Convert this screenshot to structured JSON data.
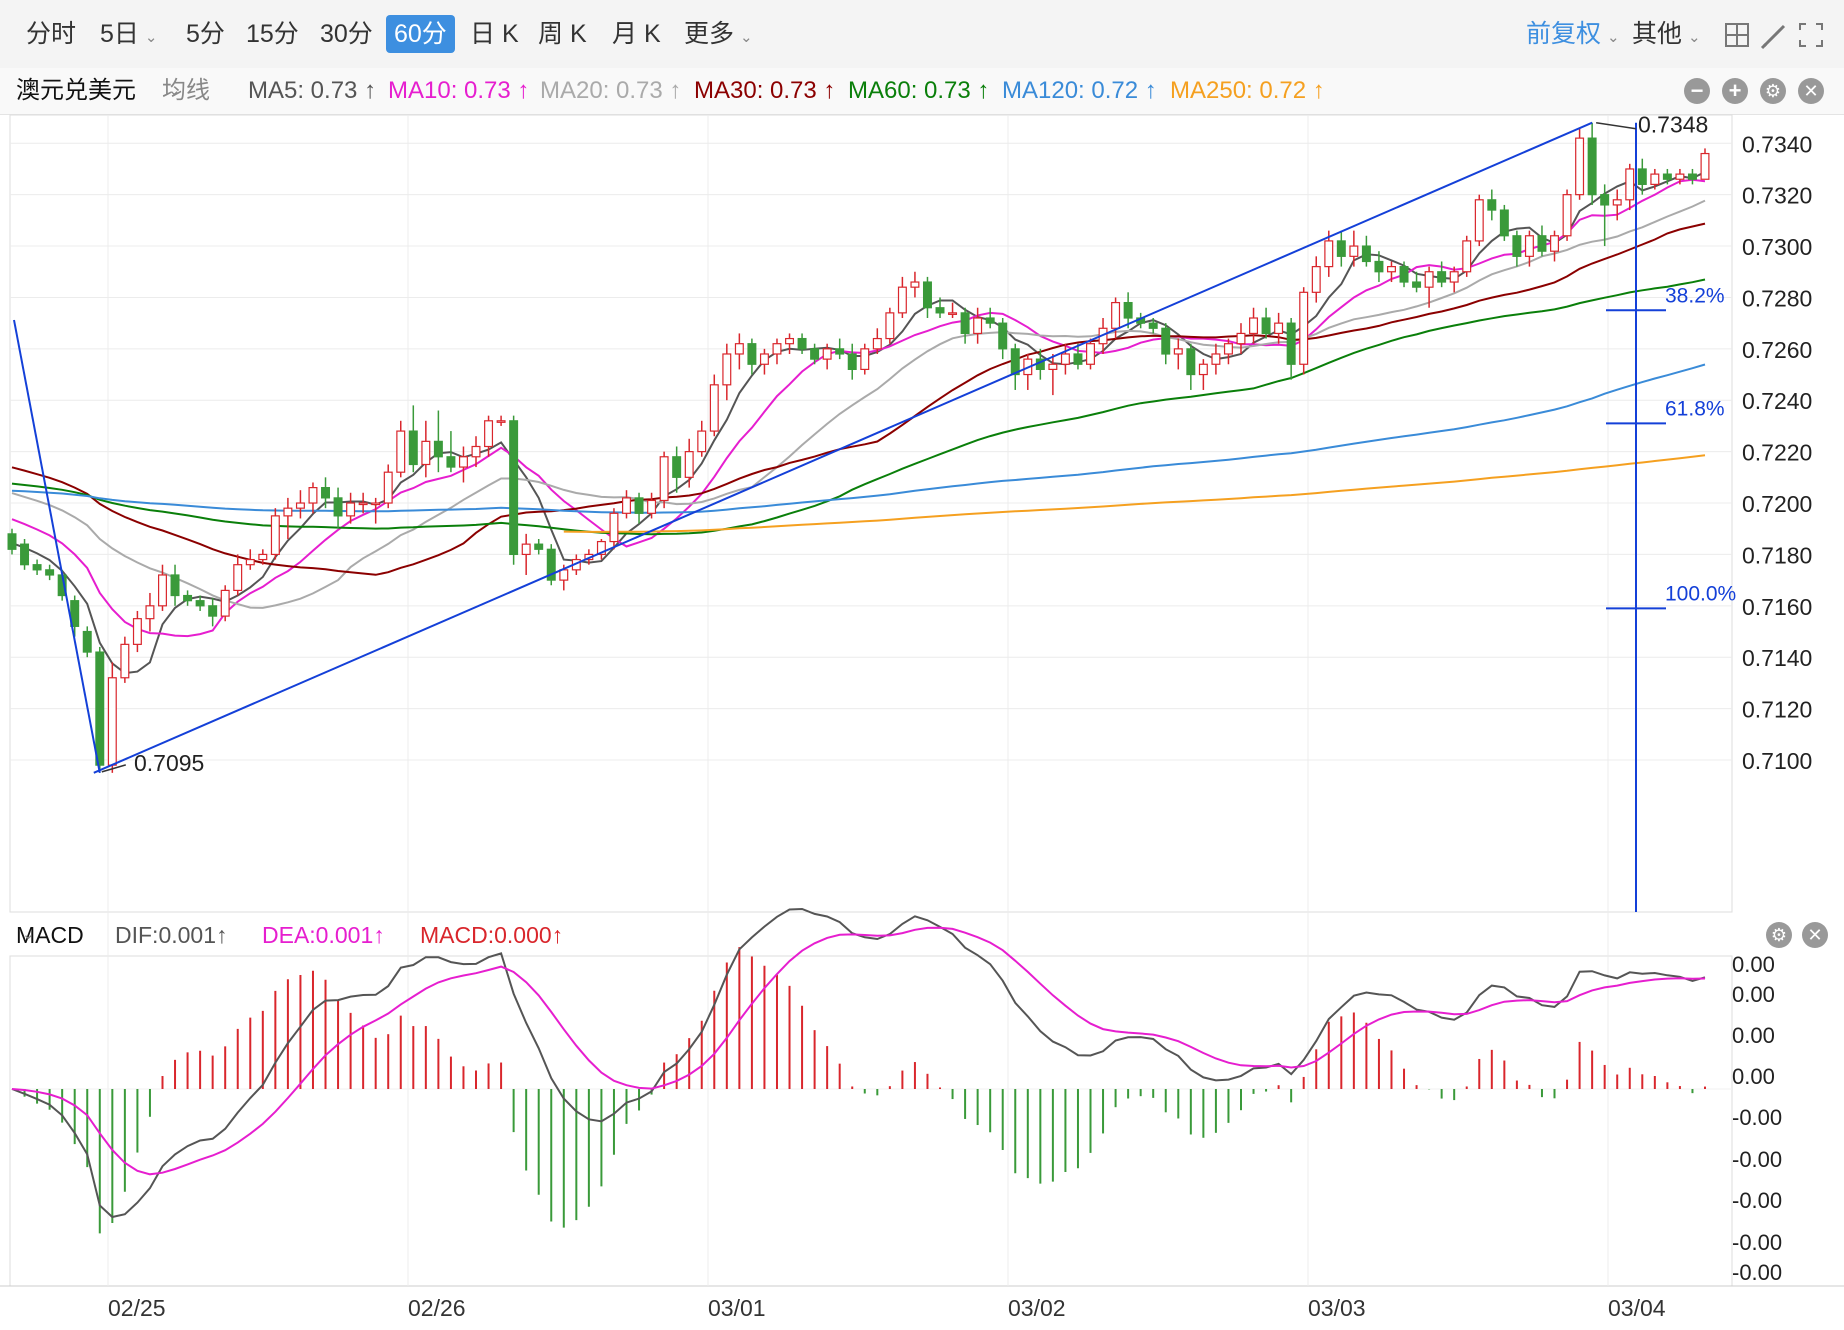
{
  "toolbar": {
    "tabs": [
      {
        "label": "分时",
        "dropdown": false
      },
      {
        "label": "5日",
        "dropdown": true
      },
      {
        "label": "5分",
        "dropdown": false
      },
      {
        "label": "15分",
        "dropdown": false
      },
      {
        "label": "30分",
        "dropdown": false
      },
      {
        "label": "60分",
        "dropdown": false,
        "active": true
      },
      {
        "label": "日 K",
        "dropdown": false
      },
      {
        "label": "周 K",
        "dropdown": false
      },
      {
        "label": "月 K",
        "dropdown": false
      },
      {
        "label": "更多",
        "dropdown": true
      }
    ],
    "adjust_label": "前复权",
    "other_label": "其他",
    "right_icons": [
      "grid-icon",
      "draw-icon",
      "fullscreen-icon"
    ]
  },
  "ma_bar": {
    "symbol": "澳元兑美元",
    "ma_type": "均线",
    "items": [
      {
        "label": "MA5: 0.73 ↑",
        "color": "#555555"
      },
      {
        "label": "MA10: 0.73 ↑",
        "color": "#e61ecf"
      },
      {
        "label": "MA20: 0.73 ↑",
        "color": "#aaaaaa"
      },
      {
        "label": "MA30: 0.73 ↑",
        "color": "#8b0000"
      },
      {
        "label": "MA60: 0.73 ↑",
        "color": "#0a7f0a"
      },
      {
        "label": "MA120: 0.72 ↑",
        "color": "#3a8bd8"
      },
      {
        "label": "MA250: 0.72 ↑",
        "color": "#f5a020"
      }
    ]
  },
  "macd_bar": {
    "title": "MACD",
    "dif": "DIF:0.001↑",
    "dea": "DEA:0.001↑",
    "macd": "MACD:0.000↑"
  },
  "colors": {
    "up": "#d9262c",
    "down": "#3a9a3a",
    "trend": "#1440d8"
  },
  "chart_data": {
    "type": "candlestick",
    "price_axis": {
      "ticks": [
        0.71,
        0.712,
        0.714,
        0.716,
        0.718,
        0.72,
        0.722,
        0.724,
        0.726,
        0.728,
        0.73,
        0.732,
        0.734
      ],
      "tick_labels": [
        "0.7100",
        "0.7120",
        "0.7140",
        "0.7160",
        "0.7180",
        "0.7200",
        "0.7220",
        "0.7240",
        "0.7260",
        "0.7280",
        "0.7300",
        "0.7320",
        "0.7340"
      ]
    },
    "x_labels": [
      "02/25",
      "02/26",
      "03/01",
      "03/02",
      "03/03",
      "03/04"
    ],
    "annotations": {
      "high": {
        "label": "0.7348",
        "value": 0.7348
      },
      "low": {
        "label": "0.7095",
        "value": 0.7095
      }
    },
    "fibonacci": [
      {
        "label": "38.2%",
        "value": 0.7275
      },
      {
        "label": "61.8%",
        "value": 0.7231
      },
      {
        "label": "100.0%",
        "value": 0.7159
      }
    ],
    "macd_axis_labels": [
      "0.00",
      "0.00",
      "0.00",
      "0.00",
      "-0.00",
      "-0.00",
      "-0.00",
      "-0.00",
      "-0.00"
    ],
    "ohlc": [
      [
        0.7188,
        0.719,
        0.718,
        0.7182
      ],
      [
        0.7184,
        0.7186,
        0.7174,
        0.7176
      ],
      [
        0.7176,
        0.7178,
        0.7172,
        0.7174
      ],
      [
        0.7174,
        0.7176,
        0.717,
        0.7172
      ],
      [
        0.7172,
        0.7174,
        0.7162,
        0.7164
      ],
      [
        0.7162,
        0.7164,
        0.7148,
        0.7152
      ],
      [
        0.715,
        0.7152,
        0.714,
        0.7142
      ],
      [
        0.7142,
        0.7144,
        0.7095,
        0.7098
      ],
      [
        0.7098,
        0.7138,
        0.7095,
        0.7132
      ],
      [
        0.7132,
        0.7148,
        0.713,
        0.7145
      ],
      [
        0.7145,
        0.7158,
        0.7142,
        0.7155
      ],
      [
        0.7155,
        0.7165,
        0.715,
        0.716
      ],
      [
        0.716,
        0.7176,
        0.7158,
        0.7172
      ],
      [
        0.7172,
        0.7176,
        0.716,
        0.7164
      ],
      [
        0.7164,
        0.7166,
        0.716,
        0.7162
      ],
      [
        0.7162,
        0.7164,
        0.7158,
        0.716
      ],
      [
        0.716,
        0.7163,
        0.7152,
        0.7156
      ],
      [
        0.7156,
        0.7168,
        0.7154,
        0.7166
      ],
      [
        0.7166,
        0.718,
        0.7164,
        0.7176
      ],
      [
        0.7176,
        0.7182,
        0.7174,
        0.7178
      ],
      [
        0.7178,
        0.7182,
        0.7176,
        0.718
      ],
      [
        0.718,
        0.7198,
        0.7178,
        0.7195
      ],
      [
        0.7195,
        0.7202,
        0.7186,
        0.7198
      ],
      [
        0.7198,
        0.7205,
        0.7194,
        0.72
      ],
      [
        0.72,
        0.7208,
        0.7196,
        0.7206
      ],
      [
        0.7206,
        0.721,
        0.7198,
        0.7202
      ],
      [
        0.7202,
        0.7206,
        0.719,
        0.7195
      ],
      [
        0.7195,
        0.7204,
        0.7192,
        0.72
      ],
      [
        0.72,
        0.7204,
        0.7196,
        0.72
      ],
      [
        0.72,
        0.7202,
        0.7192,
        0.72
      ],
      [
        0.72,
        0.7215,
        0.7198,
        0.7212
      ],
      [
        0.7212,
        0.7232,
        0.721,
        0.7228
      ],
      [
        0.7228,
        0.7238,
        0.7212,
        0.7215
      ],
      [
        0.7215,
        0.7232,
        0.721,
        0.7224
      ],
      [
        0.7224,
        0.7236,
        0.7212,
        0.7218
      ],
      [
        0.7218,
        0.7228,
        0.7212,
        0.7214
      ],
      [
        0.7214,
        0.7222,
        0.7208,
        0.7218
      ],
      [
        0.7218,
        0.7226,
        0.7214,
        0.7222
      ],
      [
        0.7222,
        0.7234,
        0.7218,
        0.7232
      ],
      [
        0.7232,
        0.7234,
        0.723,
        0.7232
      ],
      [
        0.7232,
        0.7234,
        0.7176,
        0.718
      ],
      [
        0.718,
        0.7188,
        0.7172,
        0.7184
      ],
      [
        0.7184,
        0.7186,
        0.718,
        0.7182
      ],
      [
        0.7182,
        0.7184,
        0.7168,
        0.717
      ],
      [
        0.717,
        0.7176,
        0.7166,
        0.7174
      ],
      [
        0.7174,
        0.718,
        0.7172,
        0.7178
      ],
      [
        0.7178,
        0.7182,
        0.7176,
        0.718
      ],
      [
        0.718,
        0.7186,
        0.7178,
        0.7185
      ],
      [
        0.7185,
        0.7198,
        0.7182,
        0.7196
      ],
      [
        0.7196,
        0.7205,
        0.7194,
        0.7202
      ],
      [
        0.7202,
        0.7204,
        0.7192,
        0.7196
      ],
      [
        0.7196,
        0.7204,
        0.7194,
        0.7201
      ],
      [
        0.7201,
        0.722,
        0.7198,
        0.7218
      ],
      [
        0.7218,
        0.7222,
        0.7204,
        0.721
      ],
      [
        0.721,
        0.7225,
        0.7206,
        0.722
      ],
      [
        0.722,
        0.7232,
        0.7218,
        0.7228
      ],
      [
        0.7228,
        0.725,
        0.7226,
        0.7246
      ],
      [
        0.7246,
        0.7262,
        0.724,
        0.7258
      ],
      [
        0.7258,
        0.7266,
        0.7252,
        0.7262
      ],
      [
        0.7262,
        0.7264,
        0.725,
        0.7254
      ],
      [
        0.7254,
        0.726,
        0.725,
        0.7258
      ],
      [
        0.7258,
        0.7264,
        0.7254,
        0.7262
      ],
      [
        0.7262,
        0.7266,
        0.7258,
        0.7264
      ],
      [
        0.7264,
        0.7266,
        0.7258,
        0.726
      ],
      [
        0.726,
        0.7262,
        0.7254,
        0.7256
      ],
      [
        0.7256,
        0.7262,
        0.7252,
        0.726
      ],
      [
        0.726,
        0.7264,
        0.7256,
        0.7258
      ],
      [
        0.7258,
        0.7262,
        0.7248,
        0.7252
      ],
      [
        0.7252,
        0.7262,
        0.725,
        0.726
      ],
      [
        0.726,
        0.7268,
        0.7258,
        0.7264
      ],
      [
        0.7264,
        0.7276,
        0.7262,
        0.7274
      ],
      [
        0.7274,
        0.7288,
        0.7272,
        0.7284
      ],
      [
        0.7284,
        0.729,
        0.728,
        0.7286
      ],
      [
        0.7286,
        0.7288,
        0.7272,
        0.7276
      ],
      [
        0.7276,
        0.728,
        0.7272,
        0.7274
      ],
      [
        0.7274,
        0.7278,
        0.7272,
        0.7274
      ],
      [
        0.7274,
        0.7276,
        0.7262,
        0.7266
      ],
      [
        0.7266,
        0.7276,
        0.7262,
        0.7272
      ],
      [
        0.7272,
        0.7276,
        0.7268,
        0.727
      ],
      [
        0.727,
        0.7272,
        0.7256,
        0.726
      ],
      [
        0.726,
        0.7262,
        0.7244,
        0.725
      ],
      [
        0.725,
        0.7258,
        0.7244,
        0.7256
      ],
      [
        0.7256,
        0.726,
        0.7248,
        0.7252
      ],
      [
        0.7252,
        0.7258,
        0.7242,
        0.7254
      ],
      [
        0.7254,
        0.7262,
        0.725,
        0.7258
      ],
      [
        0.7258,
        0.7262,
        0.7252,
        0.7254
      ],
      [
        0.7254,
        0.7264,
        0.7252,
        0.7262
      ],
      [
        0.7262,
        0.7272,
        0.7258,
        0.7268
      ],
      [
        0.7268,
        0.728,
        0.7264,
        0.7278
      ],
      [
        0.7278,
        0.7282,
        0.7268,
        0.7272
      ],
      [
        0.7272,
        0.7274,
        0.7268,
        0.727
      ],
      [
        0.727,
        0.7272,
        0.7266,
        0.7268
      ],
      [
        0.7268,
        0.727,
        0.7254,
        0.7258
      ],
      [
        0.7258,
        0.7264,
        0.7252,
        0.726
      ],
      [
        0.726,
        0.7262,
        0.7244,
        0.725
      ],
      [
        0.725,
        0.7256,
        0.7244,
        0.7254
      ],
      [
        0.7254,
        0.7262,
        0.725,
        0.7258
      ],
      [
        0.7258,
        0.7264,
        0.7254,
        0.7262
      ],
      [
        0.7262,
        0.727,
        0.7258,
        0.7266
      ],
      [
        0.7266,
        0.7276,
        0.7262,
        0.7272
      ],
      [
        0.7272,
        0.7276,
        0.7264,
        0.7266
      ],
      [
        0.7266,
        0.7274,
        0.7262,
        0.727
      ],
      [
        0.727,
        0.7272,
        0.7248,
        0.7254
      ],
      [
        0.7254,
        0.7284,
        0.725,
        0.7282
      ],
      [
        0.7282,
        0.7296,
        0.7278,
        0.7292
      ],
      [
        0.7292,
        0.7306,
        0.7288,
        0.7302
      ],
      [
        0.7302,
        0.7306,
        0.7292,
        0.7296
      ],
      [
        0.7296,
        0.7306,
        0.7292,
        0.73
      ],
      [
        0.73,
        0.7304,
        0.7292,
        0.7294
      ],
      [
        0.7294,
        0.7298,
        0.7286,
        0.729
      ],
      [
        0.729,
        0.7294,
        0.7286,
        0.7292
      ],
      [
        0.7292,
        0.7294,
        0.7284,
        0.7286
      ],
      [
        0.7286,
        0.729,
        0.7282,
        0.7284
      ],
      [
        0.7284,
        0.7292,
        0.7276,
        0.729
      ],
      [
        0.729,
        0.7294,
        0.7284,
        0.7286
      ],
      [
        0.7286,
        0.7292,
        0.7282,
        0.729
      ],
      [
        0.729,
        0.7304,
        0.7288,
        0.7302
      ],
      [
        0.7302,
        0.732,
        0.73,
        0.7318
      ],
      [
        0.7318,
        0.7322,
        0.731,
        0.7314
      ],
      [
        0.7314,
        0.7316,
        0.7302,
        0.7304
      ],
      [
        0.7304,
        0.7306,
        0.7292,
        0.7296
      ],
      [
        0.7296,
        0.7306,
        0.7292,
        0.7304
      ],
      [
        0.7304,
        0.7308,
        0.7296,
        0.7298
      ],
      [
        0.7298,
        0.7306,
        0.7294,
        0.7304
      ],
      [
        0.7304,
        0.7322,
        0.7302,
        0.732
      ],
      [
        0.732,
        0.7346,
        0.7318,
        0.7342
      ],
      [
        0.7342,
        0.7348,
        0.7316,
        0.732
      ],
      [
        0.732,
        0.7324,
        0.73,
        0.7316
      ],
      [
        0.7316,
        0.7322,
        0.731,
        0.7318
      ],
      [
        0.7318,
        0.7332,
        0.7314,
        0.733
      ],
      [
        0.733,
        0.7334,
        0.732,
        0.7324
      ],
      [
        0.7324,
        0.733,
        0.7322,
        0.7328
      ],
      [
        0.7328,
        0.733,
        0.7324,
        0.7326
      ],
      [
        0.7326,
        0.733,
        0.7324,
        0.7328
      ],
      [
        0.7328,
        0.733,
        0.7324,
        0.7326
      ],
      [
        0.7326,
        0.7338,
        0.7326,
        0.7336
      ]
    ]
  }
}
